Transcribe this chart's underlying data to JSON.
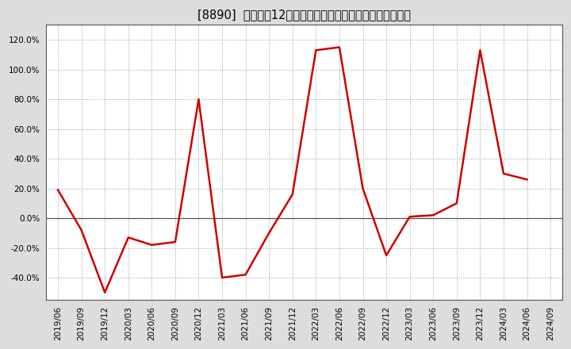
{
  "title": "[8890]  売上高の12か月移動合計の対前年同期増減率の推移",
  "x_labels": [
    "2019/06",
    "2019/09",
    "2019/12",
    "2020/03",
    "2020/06",
    "2020/09",
    "2020/12",
    "2021/03",
    "2021/06",
    "2021/09",
    "2021/12",
    "2022/03",
    "2022/06",
    "2022/09",
    "2022/12",
    "2023/03",
    "2023/06",
    "2023/09",
    "2023/12",
    "2024/03",
    "2024/06",
    "2024/09"
  ],
  "y_values": [
    19.0,
    -8.0,
    -50.0,
    -13.0,
    -18.0,
    -16.0,
    80.0,
    -40.0,
    -38.0,
    -10.0,
    16.0,
    113.0,
    115.0,
    20.0,
    -25.0,
    1.0,
    2.0,
    10.0,
    113.0,
    30.0,
    26.0,
    null
  ],
  "line_color": "#cc0000",
  "fig_bg_color": "#dddddd",
  "plot_bg_color": "#ffffff",
  "grid_color": "#999999",
  "zero_line_color": "#555555",
  "ylim": [
    -55,
    130
  ],
  "yticks": [
    -40.0,
    -20.0,
    0.0,
    20.0,
    40.0,
    60.0,
    80.0,
    100.0,
    120.0
  ],
  "title_fontsize": 10.5,
  "tick_fontsize": 7.5,
  "linewidth": 1.8
}
